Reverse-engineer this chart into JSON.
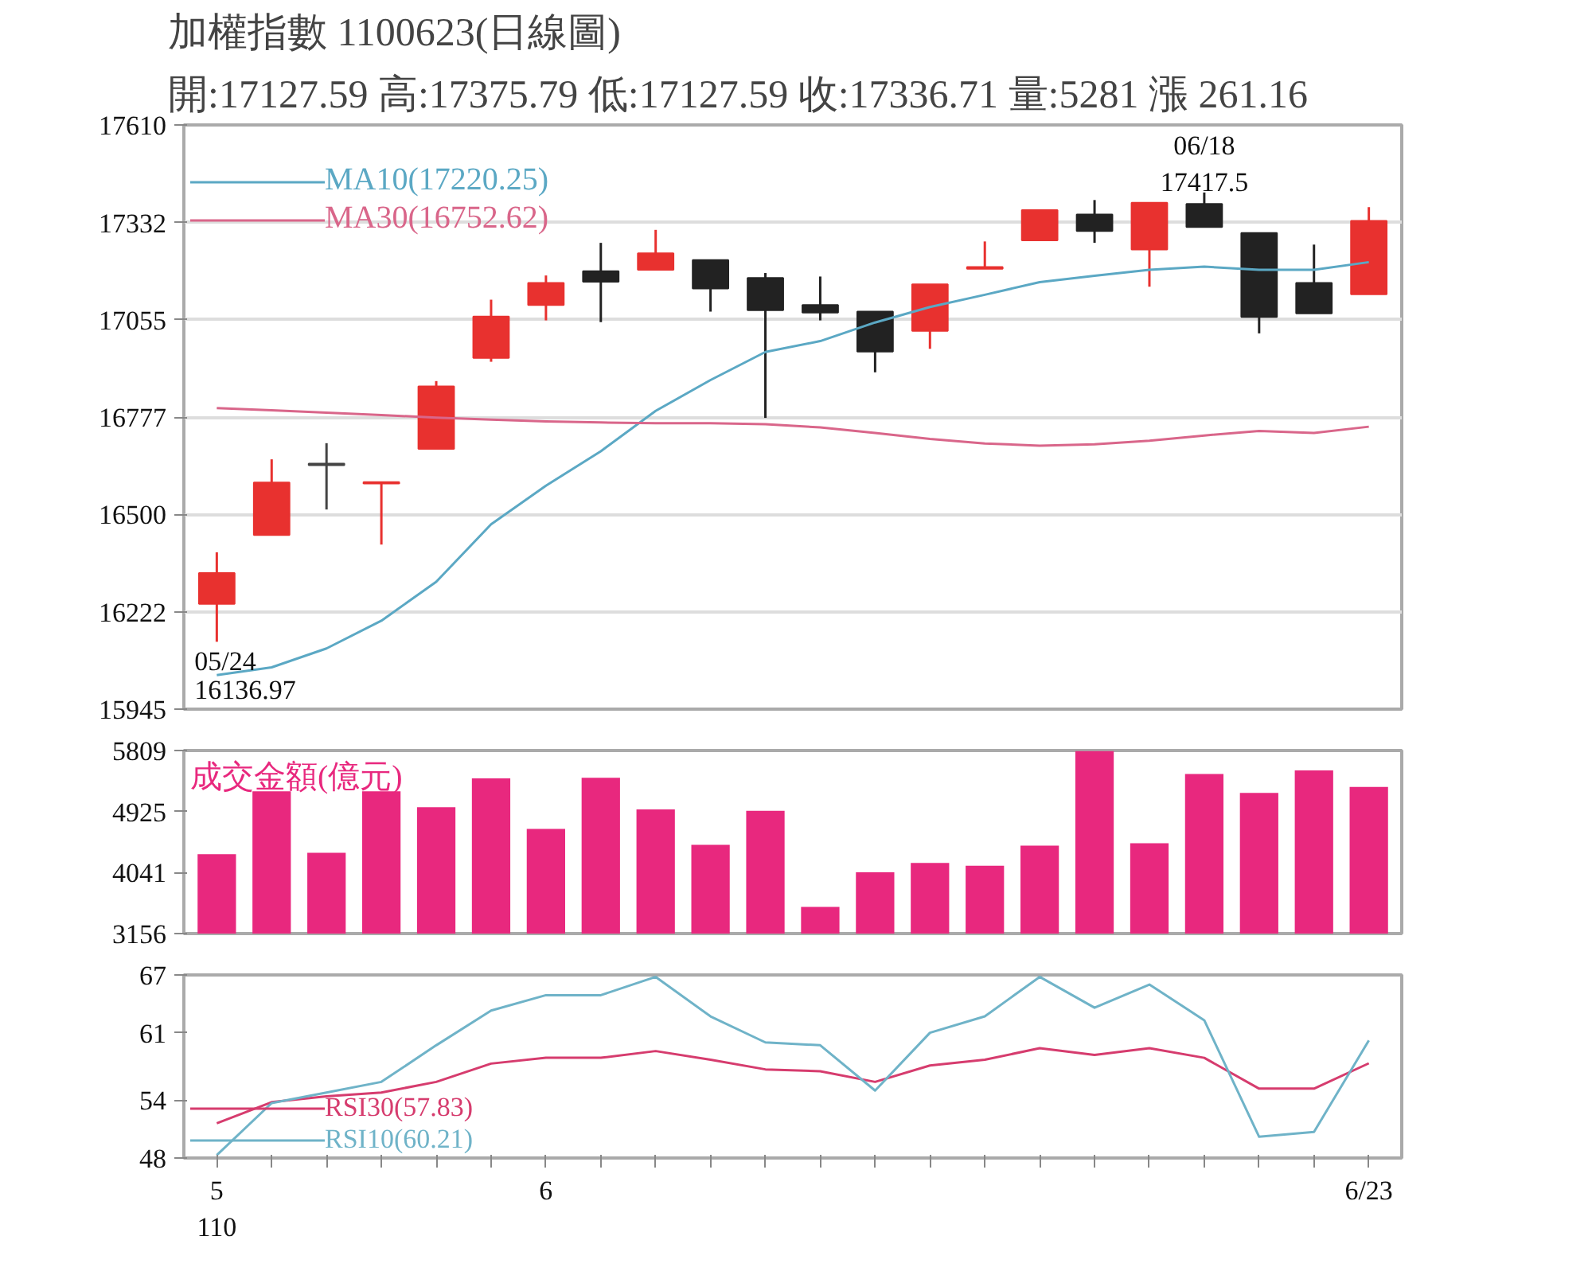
{
  "chart_data": [
    {
      "type": "candlestick",
      "title": "加權指數 1100623(日線圖)",
      "subtitle": "開:17127.59 高:17375.79 低:17127.59 收:17336.71 量:5281 漲 261.16",
      "ohlc": [
        [
          16245,
          16392,
          16136.97,
          16333
        ],
        [
          16441,
          16657,
          16441,
          16591
        ],
        [
          16645,
          16703,
          16514,
          16640
        ],
        [
          16588,
          16592,
          16414,
          16592
        ],
        [
          16687,
          16880,
          16687,
          16865
        ],
        [
          16946,
          17112,
          16935,
          17064
        ],
        [
          17097,
          17181,
          17053,
          17160
        ],
        [
          17193,
          17274,
          17048,
          17163
        ],
        [
          17197,
          17311,
          17197,
          17244
        ],
        [
          17225,
          17225,
          17078,
          17144
        ],
        [
          17174,
          17188,
          16775,
          17082
        ],
        [
          17097,
          17178,
          17053,
          17075
        ],
        [
          17078,
          17078,
          16905,
          16964
        ],
        [
          17023,
          17156,
          16972,
          17156
        ],
        [
          17200,
          17278,
          17200,
          17205
        ],
        [
          17281,
          17367,
          17281,
          17367
        ],
        [
          17355,
          17396,
          17274,
          17308
        ],
        [
          17255,
          17388,
          17149,
          17388
        ],
        [
          17385,
          17417.5,
          17319,
          17319
        ],
        [
          17302,
          17302,
          17016,
          17063
        ],
        [
          17160,
          17269,
          17073,
          17073
        ],
        [
          17127.59,
          17375.79,
          17127.59,
          17336.71
        ]
      ],
      "colors": [
        "#e8312f",
        "#e8312f",
        "#444444",
        "#e8312f",
        "#e8312f",
        "#e8312f",
        "#e8312f",
        "#222222",
        "#e8312f",
        "#222222",
        "#222222",
        "#222222",
        "#222222",
        "#e8312f",
        "#e8312f",
        "#e8312f",
        "#222222",
        "#e8312f",
        "#222222",
        "#222222",
        "#222222",
        "#e8312f"
      ],
      "series": [
        {
          "name": "MA10(17220.25)",
          "type": "line",
          "color": "#5ba8c4",
          "values": [
            16042,
            16064,
            16118,
            16197,
            16308,
            16472,
            16582,
            16680,
            16795,
            16883,
            16963,
            16994,
            17047,
            17091,
            17126,
            17162,
            17180,
            17197,
            17206,
            17197,
            17197,
            17219
          ]
        },
        {
          "name": "MA30(16752.62)",
          "type": "line",
          "color": "#d9668a",
          "values": [
            16803,
            16797,
            16790,
            16783,
            16776,
            16770,
            16765,
            16762,
            16760,
            16760,
            16757,
            16748,
            16732,
            16715,
            16702,
            16696,
            16700,
            16710,
            16725,
            16738,
            16732,
            16750
          ]
        }
      ],
      "ylim": [
        15945,
        17610
      ],
      "yticks": [
        15945,
        16222,
        16500,
        16777,
        17055,
        17332,
        17610
      ],
      "grid": "y",
      "legend": "top left",
      "tick_labels": "y",
      "annotations": [
        "05/24\n16136.97",
        {
          "text": "06/18\n17417.5",
          "y": 17417.5
        }
      ]
    },
    {
      "type": "bar",
      "series": [
        {
          "name": "成交金額(億元)",
          "color": "#e8287e",
          "values": [
            4307,
            5217,
            4328,
            5217,
            4987,
            5405,
            4673,
            5415,
            4955,
            4443,
            4934,
            3543,
            4045,
            4181,
            4139,
            4432,
            5800,
            4464,
            5468,
            5196,
            5520,
            5281
          ]
        }
      ],
      "ylim": [
        3156,
        5809
      ],
      "yticks": [
        3156,
        4041,
        4925,
        5809
      ],
      "tick_labels": "y"
    },
    {
      "type": "line",
      "categories": [
        "5\n110",
        null,
        null,
        null,
        null,
        null,
        "6",
        null,
        null,
        null,
        null,
        null,
        null,
        null,
        null,
        null,
        null,
        null,
        null,
        null,
        null,
        "6/23"
      ],
      "series": [
        {
          "name": "RSI30(57.83)",
          "color": "#d63c6e",
          "values": [
            51.6,
            53.8,
            54.4,
            54.8,
            55.9,
            57.8,
            58.4,
            58.4,
            59.1,
            58.2,
            57.2,
            57.0,
            55.9,
            57.6,
            58.2,
            59.4,
            58.7,
            59.4,
            58.4,
            55.2,
            55.2,
            57.83
          ]
        },
        {
          "name": "RSI10(60.21)",
          "color": "#6fb3c8",
          "values": [
            48.3,
            53.7,
            54.8,
            55.9,
            59.7,
            63.3,
            64.9,
            64.9,
            66.8,
            62.7,
            60.0,
            59.7,
            55.0,
            61.0,
            62.7,
            66.8,
            63.6,
            66.0,
            62.3,
            50.2,
            50.7,
            60.21
          ]
        }
      ],
      "ylim": [
        48,
        67
      ],
      "yticks": [
        48,
        54,
        61,
        67
      ],
      "legend": "bottom left"
    }
  ]
}
